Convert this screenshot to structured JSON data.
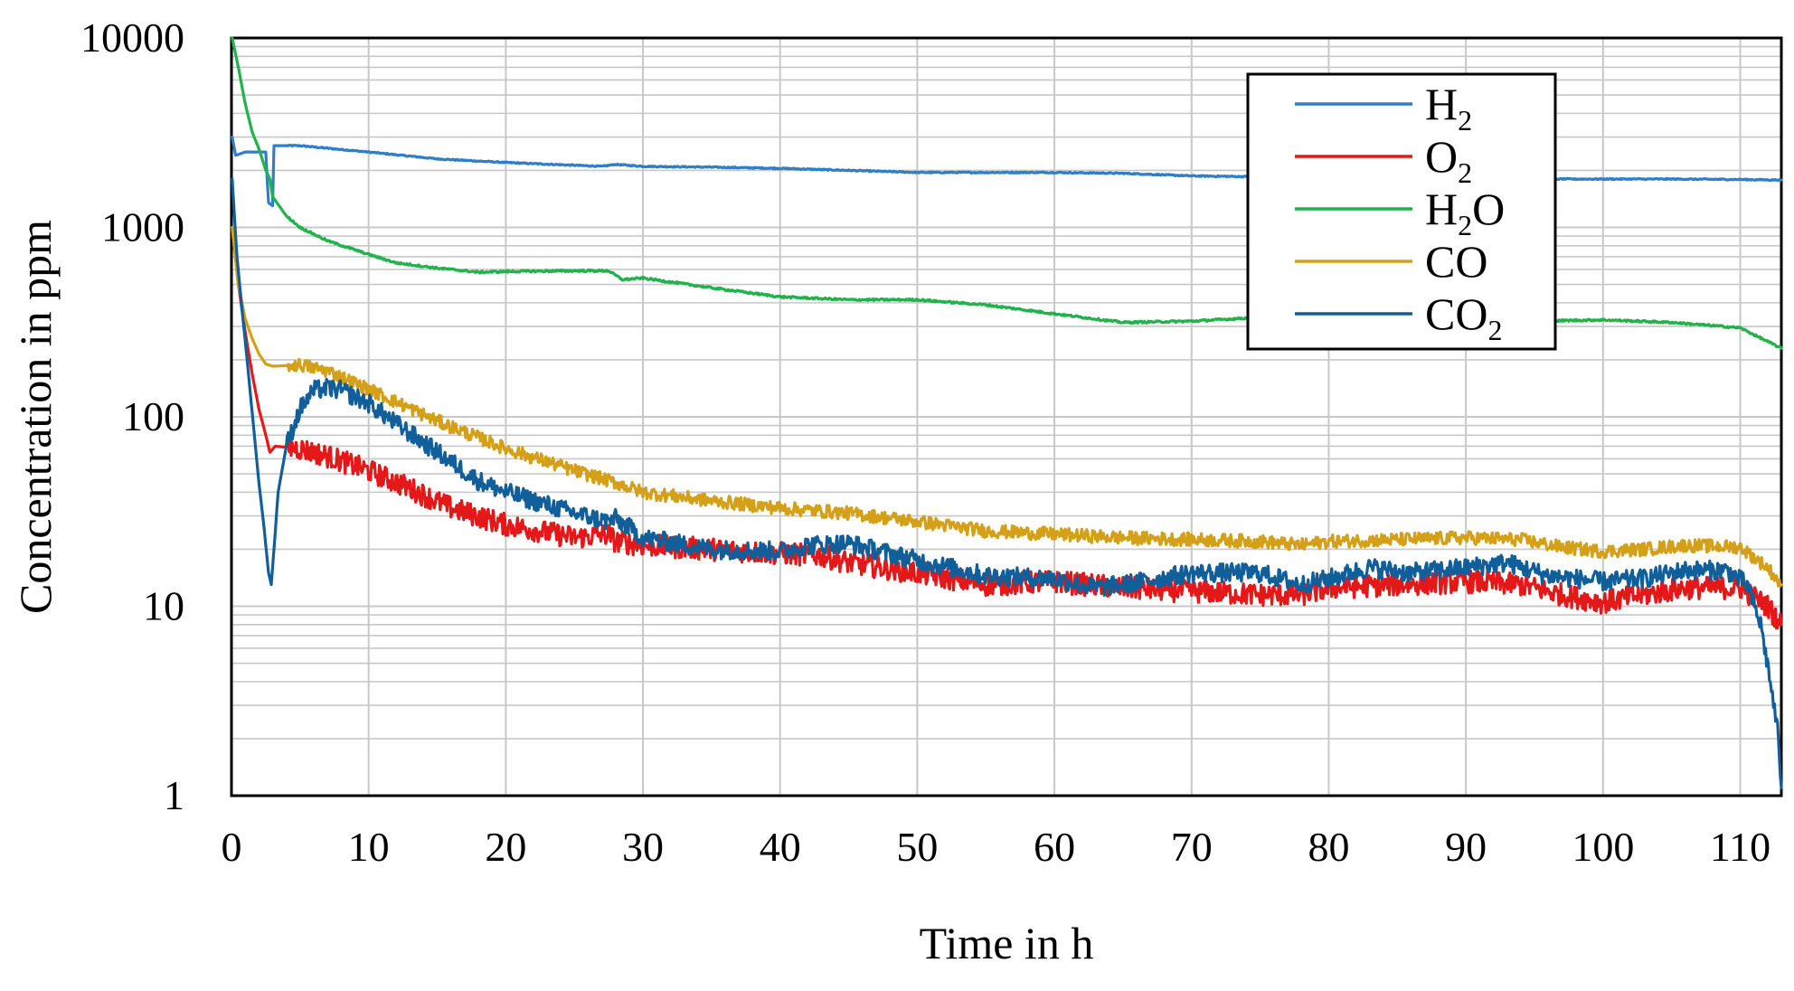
{
  "chart_data": {
    "type": "line",
    "title": "",
    "xlabel": "Time in h",
    "ylabel": "Concentration in ppm",
    "xlim": [
      0,
      113
    ],
    "ylim": [
      1,
      10000
    ],
    "yscale": "log",
    "grid": true,
    "legend_position": "top-right",
    "x_ticks": [
      0,
      10,
      20,
      30,
      40,
      50,
      60,
      70,
      80,
      90,
      100,
      110
    ],
    "x_tick_labels": [
      "0",
      "10",
      "20",
      "30",
      "40",
      "50",
      "60",
      "70",
      "80",
      "90",
      "100",
      "110"
    ],
    "y_ticks": [
      1,
      10,
      100,
      1000,
      10000
    ],
    "y_tick_labels": [
      "1",
      "10",
      "100",
      "1000",
      "10000"
    ],
    "series": [
      {
        "name": "H2",
        "label_base": "H",
        "label_sub": "2",
        "label_tail": "",
        "color": "#2f7fc8",
        "points": [
          [
            0.05,
            3000
          ],
          [
            0.3,
            2400
          ],
          [
            1.0,
            2500
          ],
          [
            1.6,
            2500
          ],
          [
            2.1,
            2500
          ],
          [
            2.5,
            2500
          ],
          [
            2.7,
            1350
          ],
          [
            3.0,
            1300
          ],
          [
            3.1,
            2700
          ],
          [
            5,
            2700
          ],
          [
            10,
            2500
          ],
          [
            15,
            2300
          ],
          [
            20,
            2200
          ],
          [
            27,
            2100
          ],
          [
            28,
            2150
          ],
          [
            30,
            2100
          ],
          [
            35,
            2080
          ],
          [
            40,
            2050
          ],
          [
            45,
            2000
          ],
          [
            50,
            1950
          ],
          [
            60,
            1950
          ],
          [
            65,
            1930
          ],
          [
            70,
            1870
          ],
          [
            75,
            1850
          ],
          [
            80,
            1830
          ],
          [
            90,
            1800
          ],
          [
            100,
            1800
          ],
          [
            105,
            1800
          ],
          [
            110,
            1790
          ],
          [
            113,
            1780
          ]
        ]
      },
      {
        "name": "O2",
        "label_base": "O",
        "label_sub": "2",
        "label_tail": "",
        "color": "#e41818",
        "points": [
          [
            0.05,
            1000
          ],
          [
            0.5,
            500
          ],
          [
            1,
            280
          ],
          [
            1.5,
            170
          ],
          [
            2,
            110
          ],
          [
            2.5,
            80
          ],
          [
            2.8,
            65
          ],
          [
            3.2,
            70
          ],
          [
            5,
            68
          ],
          [
            7,
            62
          ],
          [
            10,
            52
          ],
          [
            13,
            42
          ],
          [
            16,
            33
          ],
          [
            20,
            27
          ],
          [
            25,
            23
          ],
          [
            27.5,
            24
          ],
          [
            28,
            22
          ],
          [
            30,
            21
          ],
          [
            35,
            20
          ],
          [
            40,
            19
          ],
          [
            43,
            18.5
          ],
          [
            45,
            17
          ],
          [
            50,
            15
          ],
          [
            55,
            13
          ],
          [
            60,
            13.5
          ],
          [
            65,
            12.5
          ],
          [
            70,
            12
          ],
          [
            75,
            11.5
          ],
          [
            78,
            11.5
          ],
          [
            80,
            12.5
          ],
          [
            85,
            13
          ],
          [
            90,
            13.5
          ],
          [
            94,
            13
          ],
          [
            97,
            11.5
          ],
          [
            100,
            10.5
          ],
          [
            103,
            11.5
          ],
          [
            106,
            12.5
          ],
          [
            110,
            12.5
          ],
          [
            112,
            10
          ],
          [
            113,
            8
          ]
        ]
      },
      {
        "name": "H2O",
        "label_base": "H",
        "label_sub": "2",
        "label_tail": "O",
        "color": "#22b24c",
        "points": [
          [
            0.05,
            10000
          ],
          [
            0.5,
            7000
          ],
          [
            1,
            4500
          ],
          [
            1.5,
            3200
          ],
          [
            2,
            2600
          ],
          [
            2.5,
            2000
          ],
          [
            2.8,
            1800
          ],
          [
            3,
            1450
          ],
          [
            4,
            1150
          ],
          [
            5,
            1000
          ],
          [
            7,
            850
          ],
          [
            10,
            720
          ],
          [
            12,
            650
          ],
          [
            15,
            610
          ],
          [
            18,
            580
          ],
          [
            20,
            585
          ],
          [
            25,
            590
          ],
          [
            27.5,
            590
          ],
          [
            28.5,
            530
          ],
          [
            30,
            540
          ],
          [
            35,
            480
          ],
          [
            40,
            430
          ],
          [
            45,
            415
          ],
          [
            50,
            415
          ],
          [
            55,
            390
          ],
          [
            60,
            350
          ],
          [
            65,
            315
          ],
          [
            70,
            320
          ],
          [
            75,
            335
          ],
          [
            80,
            340
          ],
          [
            85,
            335
          ],
          [
            90,
            330
          ],
          [
            95,
            320
          ],
          [
            100,
            325
          ],
          [
            105,
            315
          ],
          [
            110,
            295
          ],
          [
            113,
            230
          ]
        ]
      },
      {
        "name": "CO",
        "label_base": "CO",
        "label_sub": "",
        "label_tail": "",
        "color": "#d4a017",
        "points": [
          [
            0.05,
            1000
          ],
          [
            0.5,
            500
          ],
          [
            1,
            330
          ],
          [
            1.5,
            260
          ],
          [
            2,
            215
          ],
          [
            2.5,
            190
          ],
          [
            3,
            185
          ],
          [
            5,
            188
          ],
          [
            7,
            175
          ],
          [
            10,
            140
          ],
          [
            15,
            95
          ],
          [
            20,
            68
          ],
          [
            25,
            52
          ],
          [
            27.5,
            46
          ],
          [
            28,
            45
          ],
          [
            30,
            40
          ],
          [
            35,
            36
          ],
          [
            40,
            33
          ],
          [
            45,
            31
          ],
          [
            50,
            28
          ],
          [
            55,
            25
          ],
          [
            60,
            24
          ],
          [
            65,
            23
          ],
          [
            70,
            22.5
          ],
          [
            75,
            22
          ],
          [
            78,
            21
          ],
          [
            80,
            22
          ],
          [
            85,
            22.5
          ],
          [
            90,
            23
          ],
          [
            94,
            22.5
          ],
          [
            97,
            20.5
          ],
          [
            100,
            19.5
          ],
          [
            103,
            20
          ],
          [
            106,
            21
          ],
          [
            110,
            20.5
          ],
          [
            112,
            16
          ],
          [
            113,
            13
          ]
        ]
      },
      {
        "name": "CO2",
        "label_base": "CO",
        "label_sub": "2",
        "label_tail": "",
        "color": "#105f9a",
        "points": [
          [
            0.05,
            1800
          ],
          [
            0.4,
            700
          ],
          [
            0.8,
            350
          ],
          [
            1.2,
            180
          ],
          [
            1.6,
            90
          ],
          [
            2,
            45
          ],
          [
            2.4,
            25
          ],
          [
            2.7,
            15
          ],
          [
            2.9,
            13
          ],
          [
            3.1,
            20
          ],
          [
            3.4,
            40
          ],
          [
            4,
            70
          ],
          [
            5,
            110
          ],
          [
            6,
            138
          ],
          [
            7,
            142
          ],
          [
            8,
            138
          ],
          [
            10,
            118
          ],
          [
            12,
            92
          ],
          [
            15,
            65
          ],
          [
            18,
            46
          ],
          [
            20,
            40
          ],
          [
            25,
            31
          ],
          [
            27.5,
            28
          ],
          [
            28,
            29
          ],
          [
            29,
            26
          ],
          [
            30,
            23
          ],
          [
            35,
            20
          ],
          [
            40,
            19.5
          ],
          [
            42,
            21
          ],
          [
            45,
            21.5
          ],
          [
            50,
            17.5
          ],
          [
            55,
            14.5
          ],
          [
            60,
            14
          ],
          [
            63,
            12.5
          ],
          [
            65,
            13
          ],
          [
            70,
            15
          ],
          [
            75,
            15
          ],
          [
            78,
            13
          ],
          [
            80,
            14
          ],
          [
            83,
            16
          ],
          [
            86,
            15
          ],
          [
            90,
            16
          ],
          [
            93,
            17
          ],
          [
            96,
            14.5
          ],
          [
            100,
            13.5
          ],
          [
            103,
            14
          ],
          [
            106,
            15.5
          ],
          [
            109,
            15.5
          ],
          [
            110.5,
            13
          ],
          [
            111.5,
            8
          ],
          [
            112.2,
            4
          ],
          [
            112.8,
            2
          ],
          [
            113,
            1.1
          ]
        ]
      }
    ]
  }
}
